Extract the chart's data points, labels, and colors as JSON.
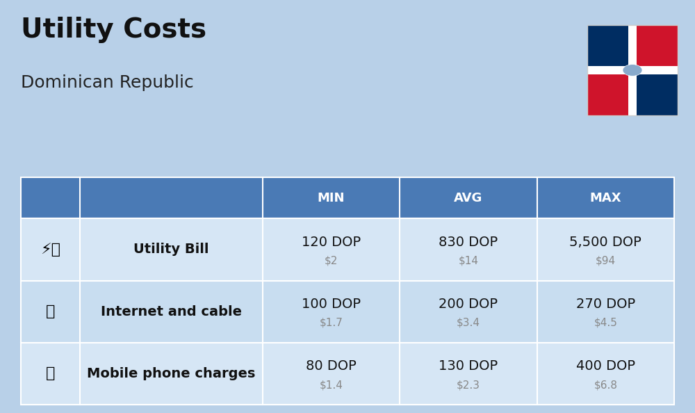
{
  "title": "Utility Costs",
  "subtitle": "Dominican Republic",
  "background_color": "#b8d0e8",
  "header_color": "#4a7ab5",
  "header_text_color": "#ffffff",
  "row_colors": [
    "#d6e6f5",
    "#c8ddf0"
  ],
  "icon_col_color": "#b8d0e8",
  "label_col_color": "#d6e6f5",
  "label_col_color2": "#c8ddf0",
  "col_headers": [
    "MIN",
    "AVG",
    "MAX"
  ],
  "rows": [
    {
      "label": "Utility Bill",
      "min_dop": "120 DOP",
      "min_usd": "$2",
      "avg_dop": "830 DOP",
      "avg_usd": "$14",
      "max_dop": "5,500 DOP",
      "max_usd": "$94"
    },
    {
      "label": "Internet and cable",
      "min_dop": "100 DOP",
      "min_usd": "$1.7",
      "avg_dop": "200 DOP",
      "avg_usd": "$3.4",
      "max_dop": "270 DOP",
      "max_usd": "$4.5"
    },
    {
      "label": "Mobile phone charges",
      "min_dop": "80 DOP",
      "min_usd": "$1.4",
      "avg_dop": "130 DOP",
      "avg_usd": "$2.3",
      "max_dop": "400 DOP",
      "max_usd": "$6.8"
    }
  ],
  "flag_colors": {
    "blue_left": "#002D62",
    "blue_right": "#002D62",
    "red_top_right": "#CF142B",
    "red_bottom_left": "#CF142B",
    "white_top_left": "#FFFFFF",
    "white_bottom_right": "#FFFFFF"
  },
  "title_fontsize": 28,
  "subtitle_fontsize": 18,
  "header_fontsize": 13,
  "cell_fontsize": 14,
  "label_fontsize": 14,
  "usd_fontsize": 11,
  "usd_color": "#888888"
}
